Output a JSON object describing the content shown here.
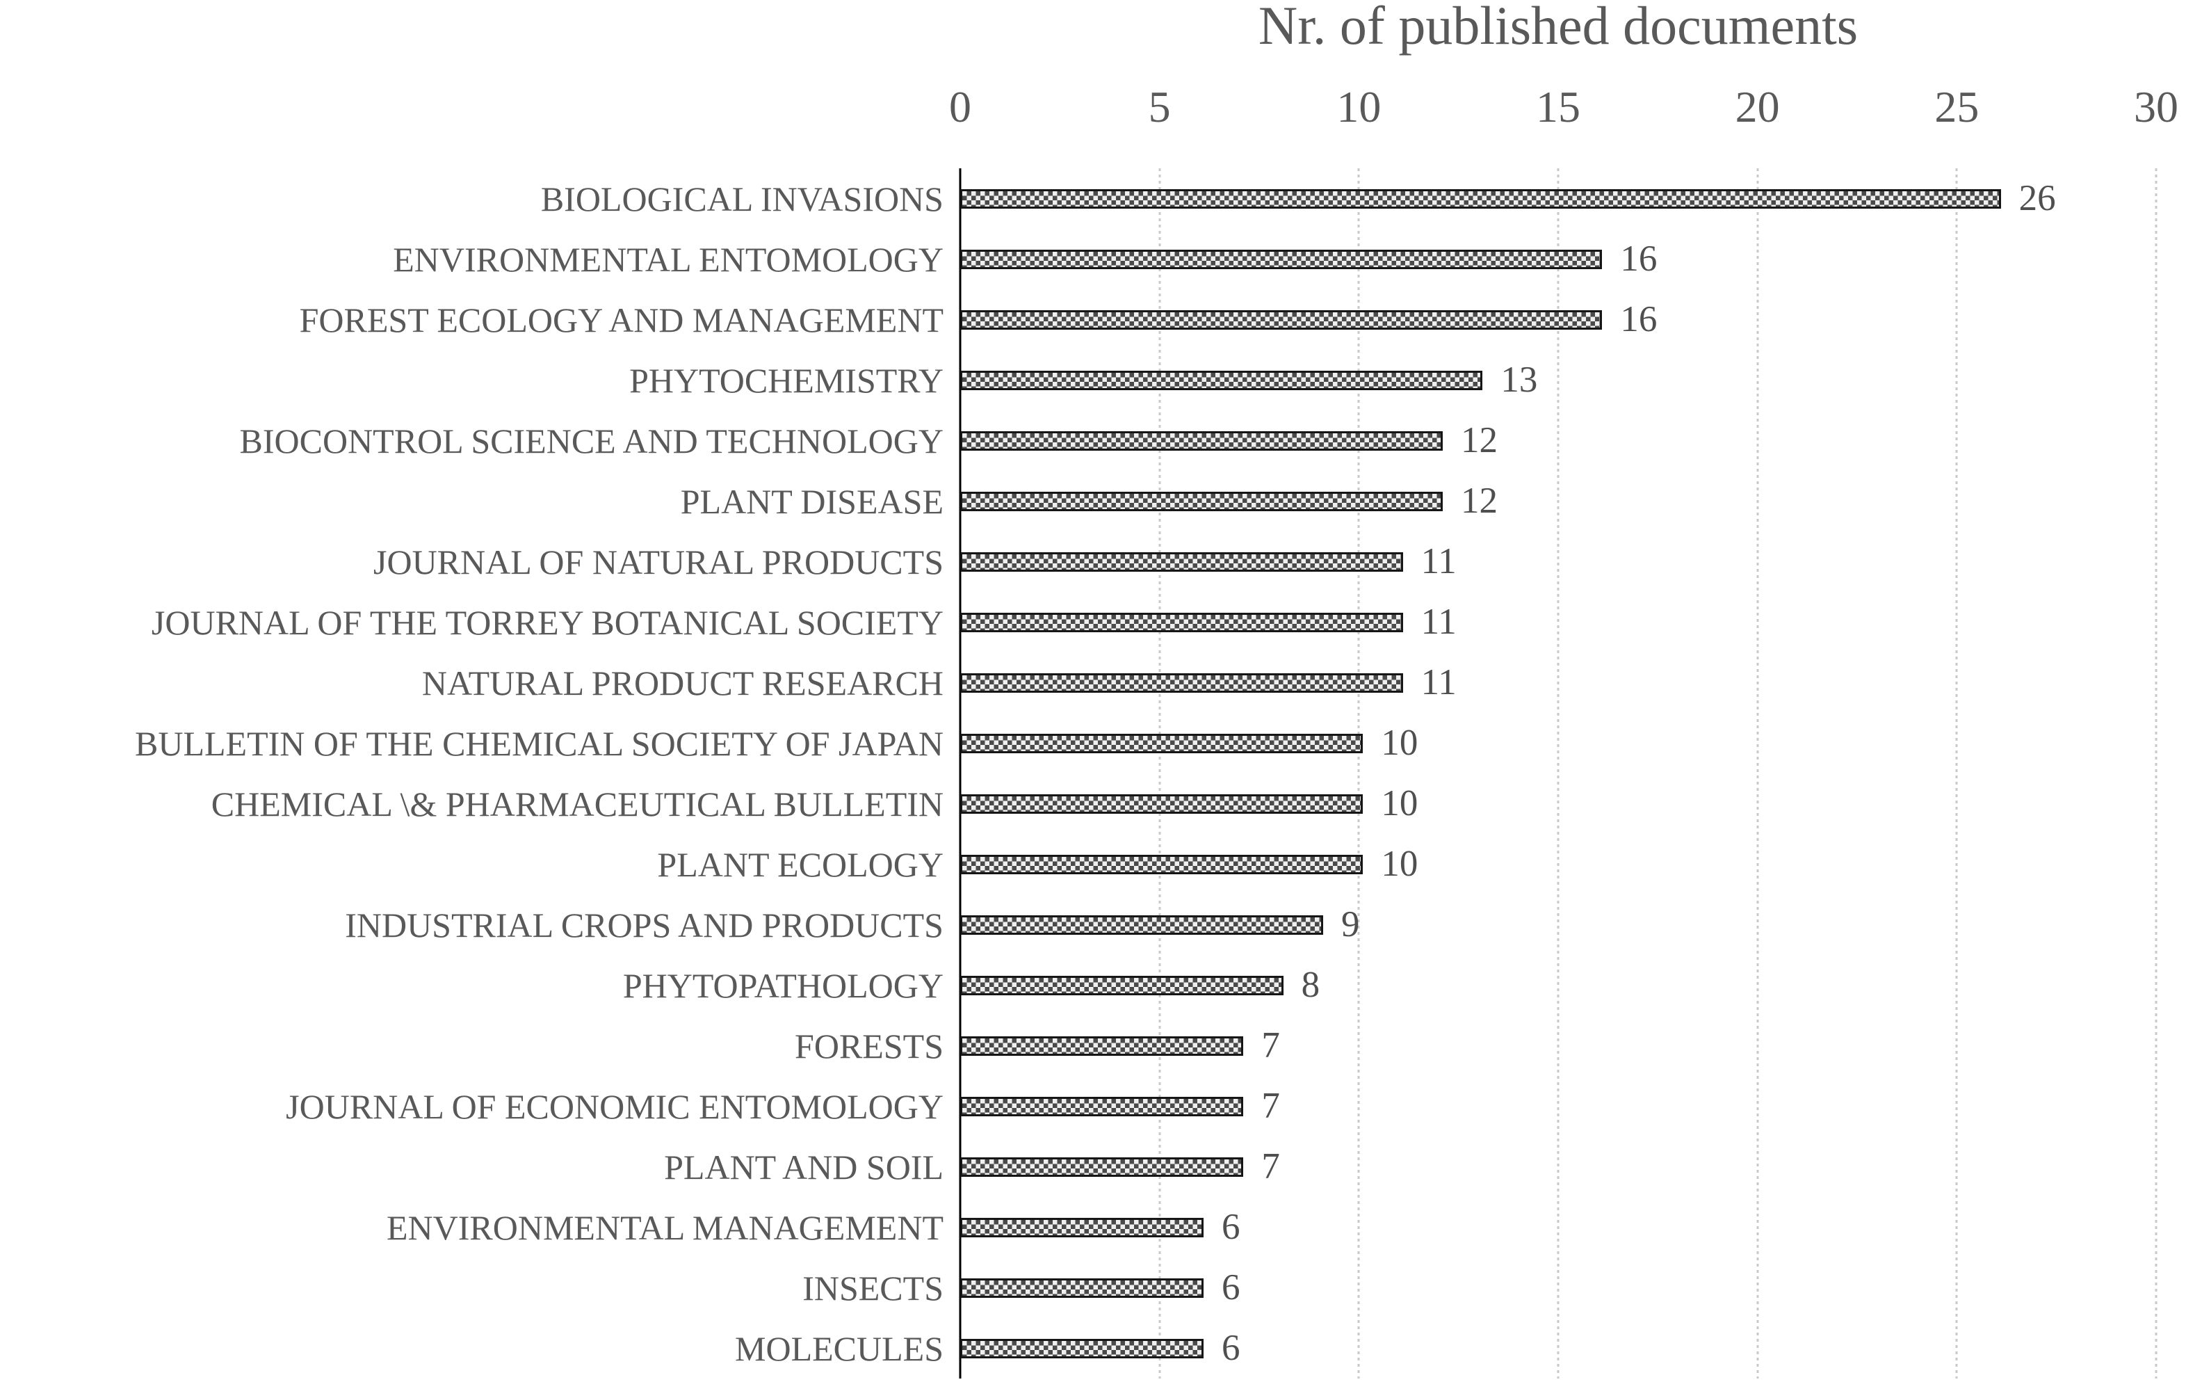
{
  "chart_data": {
    "type": "bar",
    "orientation": "horizontal",
    "title": "Nr. of published documents",
    "categories": [
      "BIOLOGICAL INVASIONS",
      "ENVIRONMENTAL ENTOMOLOGY",
      "FOREST ECOLOGY AND MANAGEMENT",
      "PHYTOCHEMISTRY",
      "BIOCONTROL SCIENCE AND TECHNOLOGY",
      "PLANT DISEASE",
      "JOURNAL OF NATURAL PRODUCTS",
      "JOURNAL OF THE TORREY BOTANICAL SOCIETY",
      "NATURAL PRODUCT RESEARCH",
      "BULLETIN OF THE CHEMICAL SOCIETY OF JAPAN",
      "CHEMICAL \\& PHARMACEUTICAL BULLETIN",
      "PLANT ECOLOGY",
      "INDUSTRIAL CROPS AND PRODUCTS",
      "PHYTOPATHOLOGY",
      "FORESTS",
      "JOURNAL OF ECONOMIC ENTOMOLOGY",
      "PLANT AND SOIL",
      "ENVIRONMENTAL MANAGEMENT",
      "INSECTS",
      "MOLECULES"
    ],
    "values": [
      26,
      16,
      16,
      13,
      12,
      12,
      11,
      11,
      11,
      10,
      10,
      10,
      9,
      8,
      7,
      7,
      7,
      6,
      6,
      6
    ],
    "xlabel": "",
    "ylabel": "",
    "xlim": [
      0,
      30
    ],
    "x_ticks": [
      0,
      5,
      10,
      15,
      20,
      25,
      30
    ],
    "grid": "vertical dotted gridlines at each x tick",
    "legend": "none",
    "bar_style": "light gray bar with dark checkered dot pattern fill and black outline",
    "value_labels": "shown at end of each bar",
    "colors": {
      "text": "#595959",
      "value_text": "#4f4f4f",
      "axis": "#000000",
      "gridline": "#c9c9c9",
      "bar_background": "#efefef",
      "bar_dot": "#4a4a4a",
      "bar_border": "#161616",
      "background": "#ffffff"
    }
  }
}
